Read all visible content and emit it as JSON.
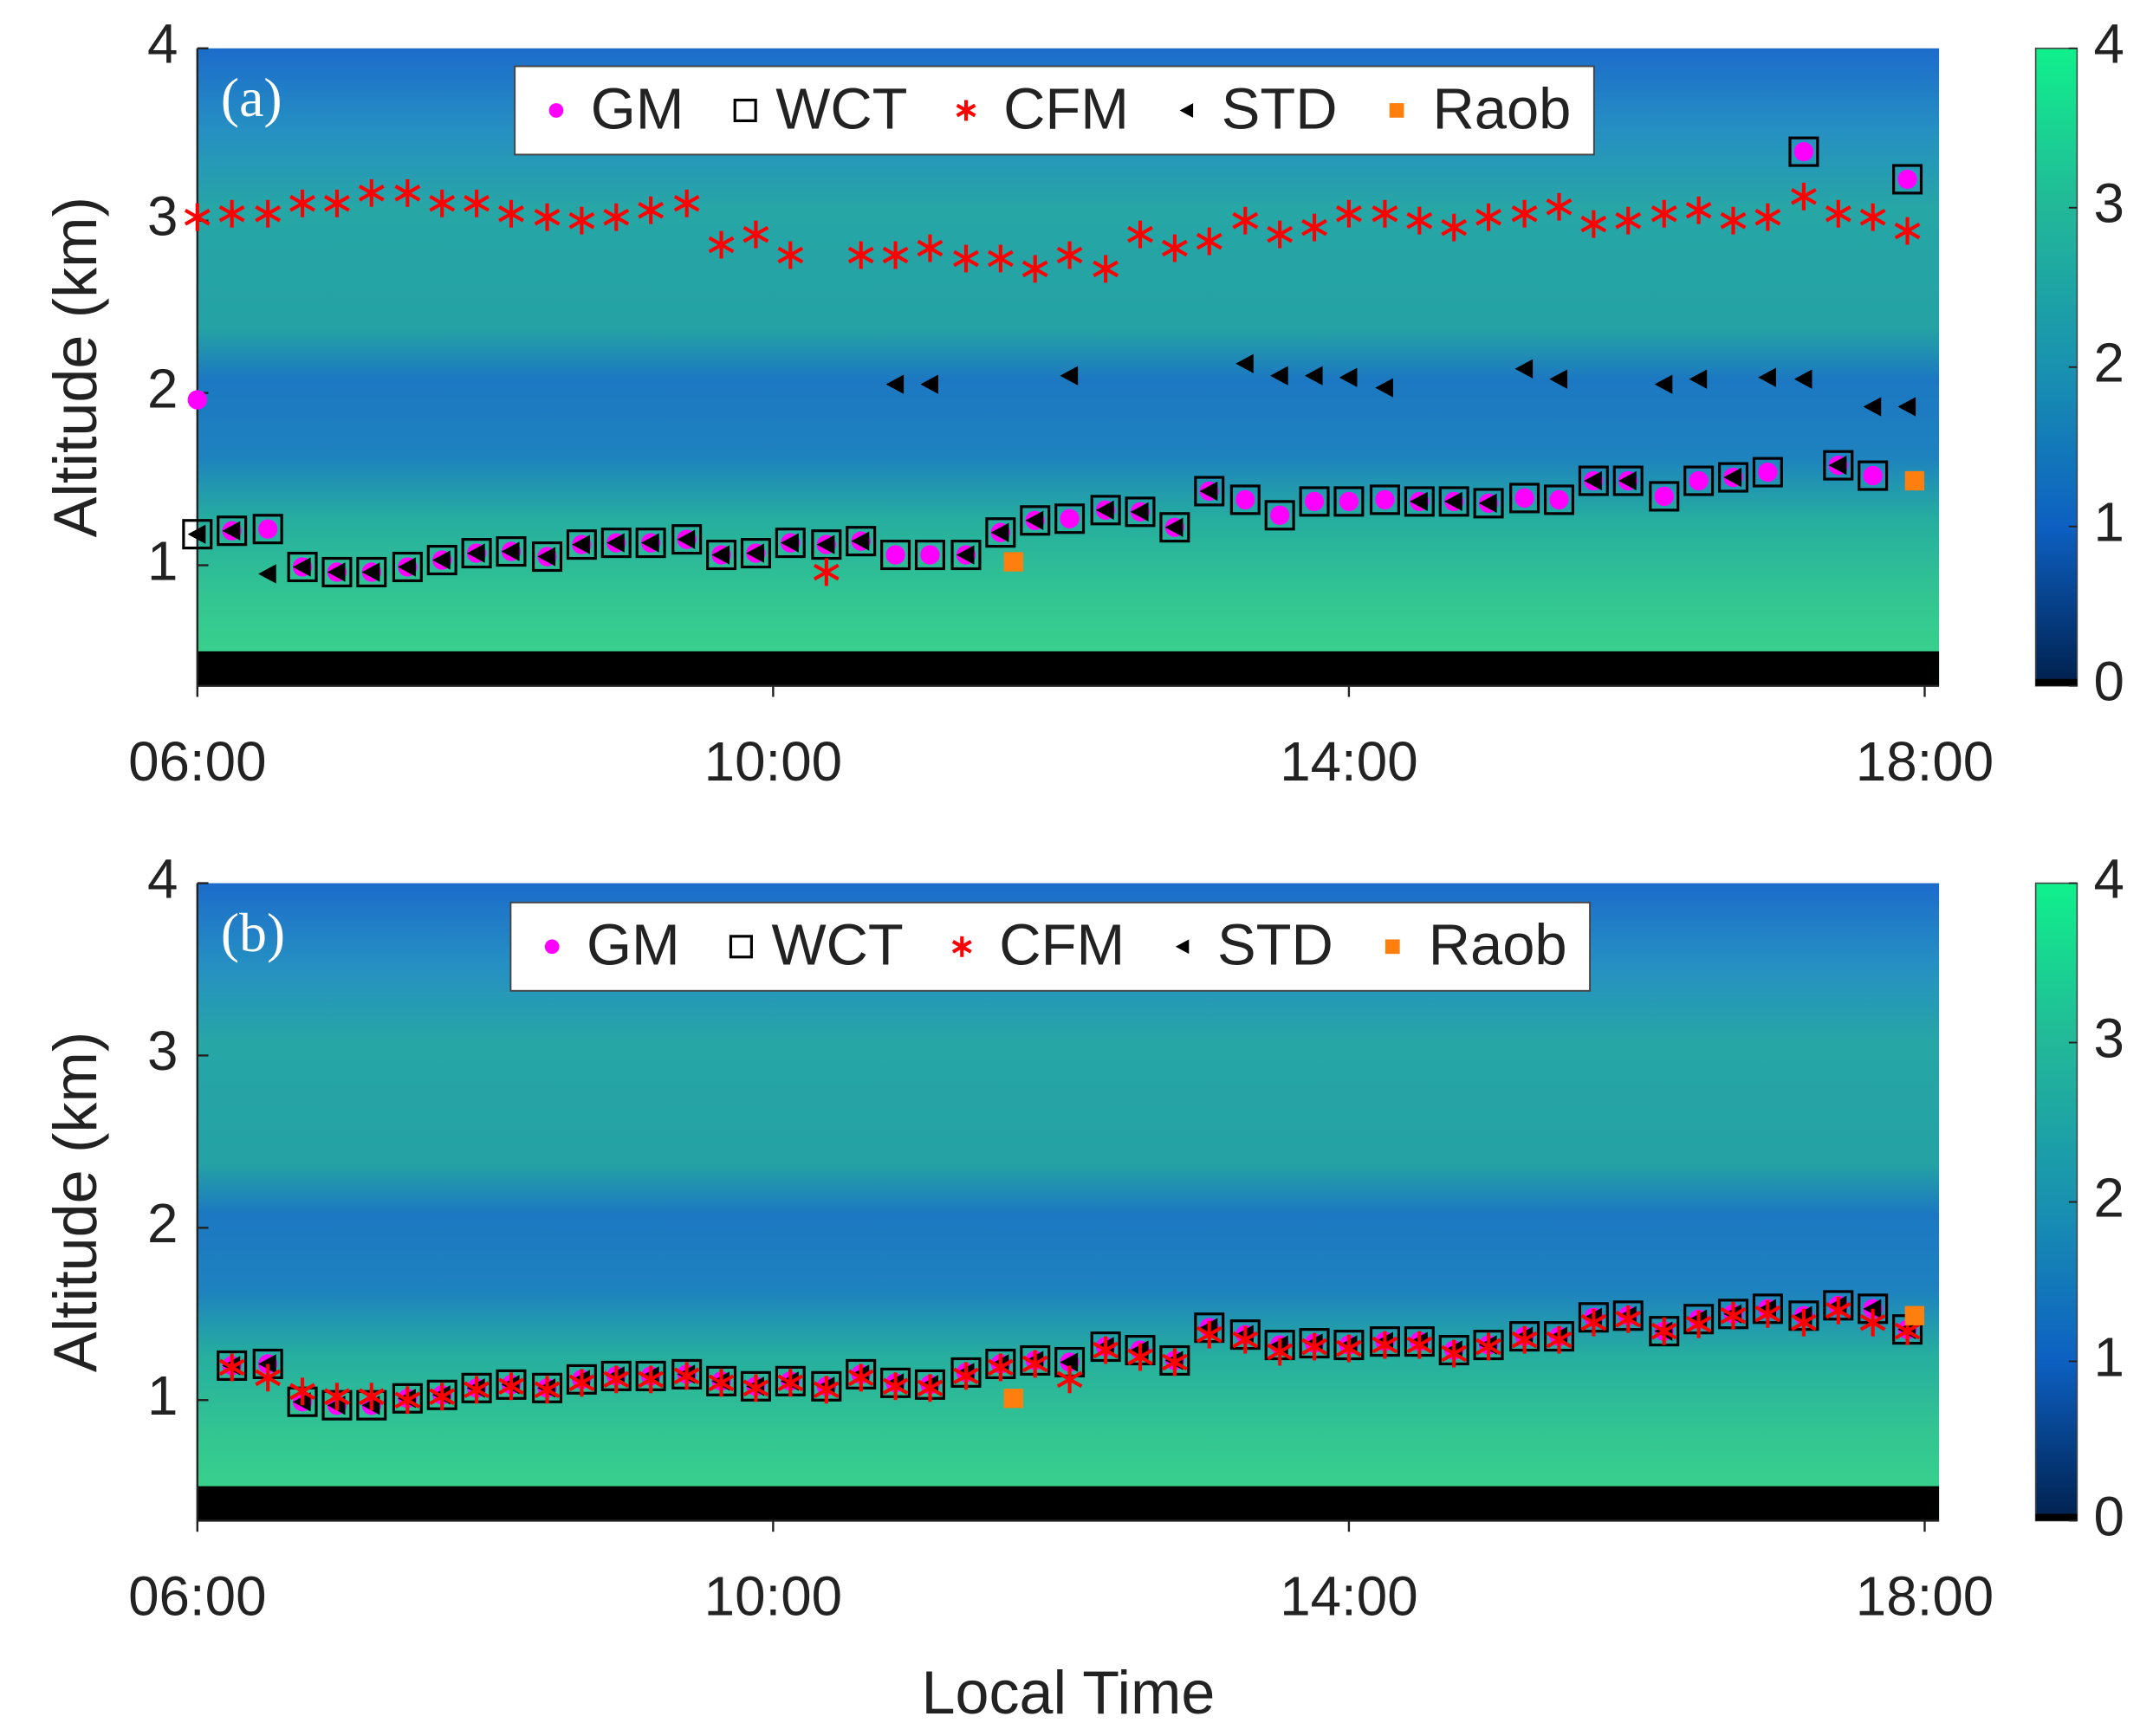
{
  "chart_data": [
    {
      "type": "scatter",
      "panel_label": "(a)",
      "ylabel": "Altitude (km)",
      "x": [
        6.0,
        6.24,
        6.49,
        6.73,
        6.97,
        7.21,
        7.46,
        7.7,
        7.94,
        8.18,
        8.43,
        8.67,
        8.91,
        9.15,
        9.4,
        9.64,
        9.88,
        10.12,
        10.37,
        10.61,
        10.85,
        11.09,
        11.34,
        11.58,
        11.82,
        12.06,
        12.31,
        12.55,
        12.79,
        13.03,
        13.28,
        13.52,
        13.76,
        14.0,
        14.25,
        14.49,
        14.73,
        14.97,
        15.22,
        15.46,
        15.7,
        15.94,
        16.19,
        16.43,
        16.67,
        16.91,
        17.16,
        17.4,
        17.64,
        17.88
      ],
      "xlim": [
        6,
        18.1
      ],
      "xticks": [
        {
          "value": 6,
          "label": "06:00"
        },
        {
          "value": 10,
          "label": "10:00"
        },
        {
          "value": 14,
          "label": "14:00"
        },
        {
          "value": 18,
          "label": "18:00"
        }
      ],
      "ylim": [
        0.3,
        4
      ],
      "yticks": [
        1,
        2,
        3,
        4
      ],
      "colorbar": {
        "lim": [
          0,
          4
        ],
        "ticks": [
          0,
          1,
          2,
          3,
          4
        ]
      },
      "series": [
        {
          "name": "WCT",
          "color": "#000000",
          "marker": "square",
          "values": [
            1.18,
            1.2,
            1.21,
            0.99,
            0.96,
            0.96,
            0.99,
            1.03,
            1.07,
            1.08,
            1.05,
            1.12,
            1.13,
            1.13,
            1.15,
            1.06,
            1.07,
            1.13,
            1.12,
            1.14,
            1.06,
            1.06,
            1.06,
            1.19,
            1.26,
            1.27,
            1.32,
            1.31,
            1.22,
            1.43,
            1.38,
            1.29,
            1.37,
            1.37,
            1.38,
            1.37,
            1.37,
            1.36,
            1.39,
            1.38,
            1.49,
            1.49,
            1.4,
            1.49,
            1.51,
            1.54,
            3.4,
            1.58,
            1.52,
            3.24
          ]
        },
        {
          "name": "GM",
          "color": "#ff00ff",
          "marker": "circle",
          "values": [
            1.96,
            1.2,
            1.21,
            0.99,
            0.96,
            0.96,
            0.99,
            1.03,
            1.07,
            1.08,
            1.05,
            1.12,
            1.13,
            1.13,
            1.15,
            1.06,
            1.07,
            1.13,
            1.12,
            1.14,
            1.06,
            1.06,
            1.06,
            1.19,
            1.26,
            1.27,
            1.32,
            1.31,
            1.22,
            1.43,
            1.38,
            1.29,
            1.37,
            1.37,
            1.38,
            1.37,
            1.37,
            1.36,
            1.39,
            1.38,
            1.49,
            1.49,
            1.4,
            1.49,
            1.51,
            1.54,
            3.4,
            1.58,
            1.52,
            3.24
          ]
        },
        {
          "name": "STD",
          "color": "#000000",
          "marker": "triangle",
          "values": [
            1.18,
            1.2,
            0.95,
            0.99,
            0.96,
            0.96,
            0.99,
            1.03,
            1.07,
            1.08,
            1.05,
            1.12,
            1.13,
            1.13,
            1.15,
            1.06,
            1.07,
            1.13,
            1.12,
            1.14,
            2.05,
            2.05,
            1.06,
            1.19,
            1.26,
            2.1,
            1.32,
            1.31,
            1.22,
            1.43,
            2.17,
            2.1,
            2.1,
            2.09,
            2.03,
            1.37,
            1.37,
            1.36,
            2.14,
            2.08,
            1.49,
            1.49,
            2.05,
            2.08,
            1.51,
            2.09,
            2.08,
            1.58,
            1.92,
            1.92
          ]
        },
        {
          "name": "CFM",
          "color": "#ff0000",
          "marker": "asterisk",
          "values": [
            3.02,
            3.04,
            3.04,
            3.1,
            3.1,
            3.16,
            3.16,
            3.1,
            3.1,
            3.04,
            3.02,
            3.0,
            3.02,
            3.06,
            3.1,
            2.86,
            2.92,
            2.8,
            0.96,
            2.8,
            2.8,
            2.84,
            2.78,
            2.78,
            2.72,
            2.8,
            2.72,
            2.92,
            2.84,
            2.88,
            3.0,
            2.92,
            2.96,
            3.04,
            3.04,
            3.0,
            2.96,
            3.02,
            3.04,
            3.08,
            2.98,
            3.0,
            3.04,
            3.06,
            3.0,
            3.02,
            3.14,
            3.04,
            3.02,
            2.94
          ]
        },
        {
          "name": "Raob",
          "color": "#ff7f0e",
          "marker": "filled-square",
          "x": [
            11.67,
            17.93
          ],
          "values": [
            1.02,
            1.49
          ]
        }
      ]
    },
    {
      "type": "scatter",
      "panel_label": "(b)",
      "ylabel": "Altitude (km)",
      "xlabel": "Local Time",
      "x": [
        6.0,
        6.24,
        6.49,
        6.73,
        6.97,
        7.21,
        7.46,
        7.7,
        7.94,
        8.18,
        8.43,
        8.67,
        8.91,
        9.15,
        9.4,
        9.64,
        9.88,
        10.12,
        10.37,
        10.61,
        10.85,
        11.09,
        11.34,
        11.58,
        11.82,
        12.06,
        12.31,
        12.55,
        12.79,
        13.03,
        13.28,
        13.52,
        13.76,
        14.0,
        14.25,
        14.49,
        14.73,
        14.97,
        15.22,
        15.46,
        15.7,
        15.94,
        16.19,
        16.43,
        16.67,
        16.91,
        17.16,
        17.4,
        17.64,
        17.88
      ],
      "xlim": [
        6,
        18.1
      ],
      "xticks": [
        {
          "value": 6,
          "label": "06:00"
        },
        {
          "value": 10,
          "label": "10:00"
        },
        {
          "value": 14,
          "label": "14:00"
        },
        {
          "value": 18,
          "label": "18:00"
        }
      ],
      "ylim": [
        0.3,
        4
      ],
      "yticks": [
        1,
        2,
        3,
        4
      ],
      "colorbar": {
        "lim": [
          0,
          4
        ],
        "ticks": [
          0,
          1,
          2,
          3,
          4
        ]
      },
      "series": [
        {
          "name": "WCT",
          "color": "#000000",
          "marker": "square",
          "values": [
            null,
            1.2,
            1.21,
            0.99,
            0.97,
            0.97,
            1.01,
            1.03,
            1.07,
            1.09,
            1.07,
            1.12,
            1.14,
            1.14,
            1.15,
            1.11,
            1.08,
            1.11,
            1.08,
            1.15,
            1.1,
            1.09,
            1.16,
            1.21,
            1.23,
            1.22,
            1.31,
            1.29,
            1.23,
            1.42,
            1.38,
            1.32,
            1.33,
            1.32,
            1.34,
            1.34,
            1.29,
            1.32,
            1.37,
            1.37,
            1.48,
            1.49,
            1.4,
            1.47,
            1.5,
            1.53,
            1.49,
            1.55,
            1.53,
            1.41
          ]
        },
        {
          "name": "GM",
          "color": "#ff00ff",
          "marker": "circle",
          "values": [
            null,
            1.2,
            1.21,
            0.99,
            0.97,
            0.97,
            1.01,
            1.03,
            1.07,
            1.09,
            1.07,
            1.12,
            1.14,
            1.14,
            1.15,
            1.11,
            1.08,
            1.11,
            1.08,
            1.15,
            1.1,
            1.09,
            1.16,
            1.21,
            1.23,
            1.22,
            1.31,
            1.29,
            1.23,
            1.42,
            1.38,
            1.32,
            1.33,
            1.32,
            1.34,
            1.34,
            1.29,
            1.32,
            1.37,
            1.37,
            1.48,
            1.49,
            1.4,
            1.47,
            1.5,
            1.53,
            1.49,
            1.55,
            1.53,
            1.41
          ]
        },
        {
          "name": "STD",
          "color": "#000000",
          "marker": "triangle",
          "values": [
            null,
            1.2,
            1.21,
            0.99,
            0.97,
            0.97,
            1.01,
            1.03,
            1.07,
            1.09,
            1.07,
            1.12,
            1.14,
            1.14,
            1.15,
            1.11,
            1.08,
            1.11,
            1.08,
            1.15,
            1.1,
            1.09,
            1.16,
            1.21,
            1.23,
            1.22,
            1.31,
            1.29,
            1.23,
            1.42,
            1.38,
            1.32,
            1.33,
            1.32,
            1.34,
            1.34,
            1.29,
            1.32,
            1.37,
            1.37,
            1.48,
            1.49,
            1.4,
            1.47,
            1.5,
            1.53,
            1.49,
            1.55,
            1.53,
            1.41
          ]
        },
        {
          "name": "CFM",
          "color": "#ff0000",
          "marker": "asterisk",
          "values": [
            null,
            1.19,
            1.13,
            1.05,
            1.02,
            1.02,
            1.0,
            1.02,
            1.06,
            1.08,
            1.06,
            1.1,
            1.12,
            1.12,
            1.14,
            1.1,
            1.07,
            1.1,
            1.06,
            1.13,
            1.08,
            1.07,
            1.14,
            1.19,
            1.21,
            1.12,
            1.29,
            1.25,
            1.22,
            1.38,
            1.35,
            1.28,
            1.31,
            1.3,
            1.32,
            1.32,
            1.27,
            1.31,
            1.35,
            1.35,
            1.45,
            1.47,
            1.4,
            1.44,
            1.49,
            1.5,
            1.45,
            1.52,
            1.45,
            1.4
          ]
        },
        {
          "name": "Raob",
          "color": "#ff7f0e",
          "marker": "filled-square",
          "x": [
            11.67,
            17.93
          ],
          "values": [
            1.01,
            1.49
          ]
        }
      ]
    }
  ]
}
